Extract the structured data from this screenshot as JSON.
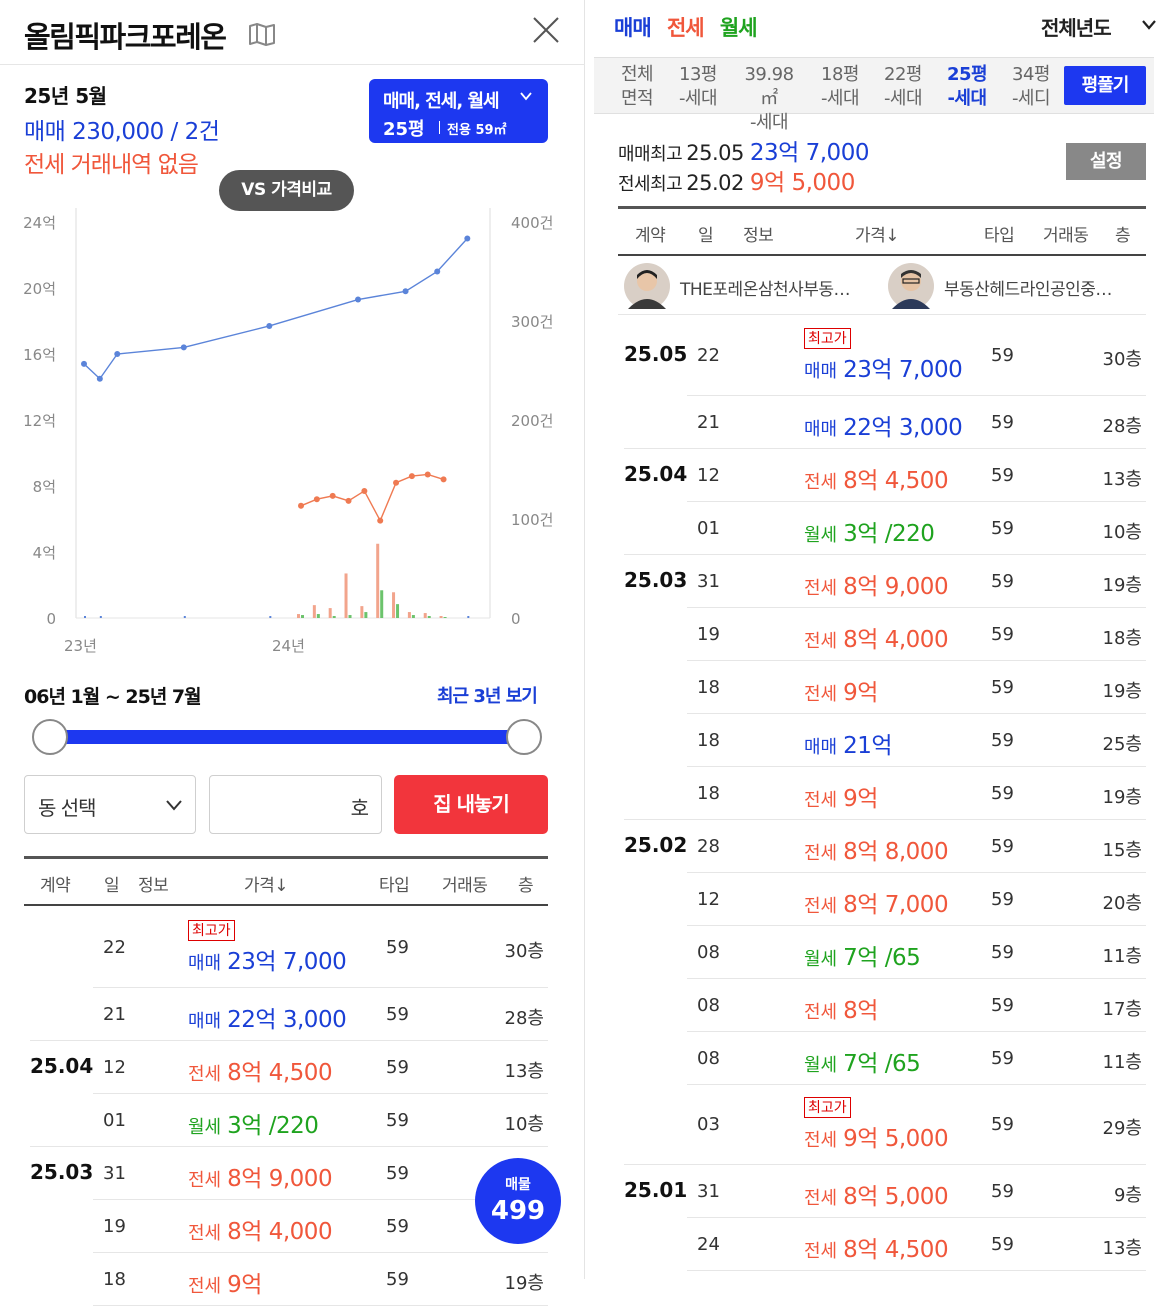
{
  "left": {
    "title": "올림픽파크포레온",
    "summary": {
      "year_month": "25년 5월",
      "sale_summary": "매매 230,000 / 2건",
      "jeonse_summary": "전세 거래내역 없음"
    },
    "type_button": {
      "line1": "매매, 전세, 월세",
      "pyeong": "25평",
      "area": "전용 59㎡"
    },
    "vs_button": "VS 가격비교",
    "range_text": "06년 1월 ~ 25년 7월",
    "recent_link": "최근 3년 보기",
    "dong_select": "동 선택",
    "ho_placeholder": "호",
    "list_button": "집 내놓기",
    "table_headers": [
      "계약",
      "일",
      "정보",
      "가격↓",
      "타입",
      "거래동",
      "층"
    ],
    "rows": [
      {
        "ym": "",
        "day": "22",
        "badge": "최고가",
        "kind": "매매",
        "price": "23억 7,000",
        "type": "59",
        "floor": "30층",
        "color": "blue"
      },
      {
        "ym": "",
        "day": "21",
        "badge": "",
        "kind": "매매",
        "price": "22억 3,000",
        "type": "59",
        "floor": "28층",
        "color": "blue"
      },
      {
        "ym": "25.04",
        "day": "12",
        "badge": "",
        "kind": "전세",
        "price": "8억 4,500",
        "type": "59",
        "floor": "13층",
        "color": "red"
      },
      {
        "ym": "",
        "day": "01",
        "badge": "",
        "kind": "월세",
        "price": "3억 /220",
        "type": "59",
        "floor": "10층",
        "color": "green"
      },
      {
        "ym": "25.03",
        "day": "31",
        "badge": "",
        "kind": "전세",
        "price": "8억 9,000",
        "type": "59",
        "floor": "",
        "color": "red"
      },
      {
        "ym": "",
        "day": "19",
        "badge": "",
        "kind": "전세",
        "price": "8억 4,000",
        "type": "59",
        "floor": "",
        "color": "red"
      },
      {
        "ym": "",
        "day": "18",
        "badge": "",
        "kind": "전세",
        "price": "9억",
        "type": "59",
        "floor": "19층",
        "color": "red"
      }
    ],
    "fab": {
      "label": "매물",
      "count": "499"
    }
  },
  "chart_data": {
    "type": "line",
    "x_ticks": [
      "23년",
      "24년"
    ],
    "y_left_ticks": [
      "0",
      "4억",
      "8억",
      "12억",
      "16억",
      "20억",
      "24억"
    ],
    "y_left_range": [
      0,
      24
    ],
    "y_right_ticks": [
      "0",
      "100건",
      "200건",
      "300건",
      "400건"
    ],
    "y_right_range": [
      0,
      400
    ],
    "x_range": [
      0,
      25
    ],
    "series": [
      {
        "kind": "매매",
        "color": "#5b84d9",
        "x": [
          0.0,
          1.0,
          2.1,
          6.3,
          11.7,
          17.3,
          20.3,
          22.3,
          24.2
        ],
        "y": [
          15.4,
          14.5,
          16.0,
          16.4,
          17.7,
          19.3,
          19.8,
          21.0,
          23.0
        ]
      },
      {
        "kind": "전세",
        "color": "#ef7a52",
        "x": [
          13.7,
          14.7,
          15.7,
          16.7,
          17.7,
          18.7,
          19.7,
          20.7,
          21.7,
          22.7
        ],
        "y": [
          6.8,
          7.2,
          7.4,
          7.1,
          7.7,
          5.9,
          8.2,
          8.6,
          8.7,
          8.4
        ]
      }
    ],
    "volume_bars": {
      "x": [
        13.7,
        14.7,
        15.7,
        16.7,
        17.7,
        18.7,
        19.7,
        20.7,
        21.7,
        22.7
      ],
      "jeonse": [
        4,
        13,
        10,
        45,
        12,
        75,
        26,
        6,
        5,
        2
      ],
      "wolse": [
        3,
        4,
        2,
        3,
        6,
        28,
        14,
        3,
        2,
        1
      ]
    }
  },
  "right": {
    "deal_tabs": [
      {
        "label": "매매",
        "color": "blue"
      },
      {
        "label": "전세",
        "color": "red"
      },
      {
        "label": "월세",
        "color": "green"
      }
    ],
    "year_select": "전체년도",
    "areas": [
      {
        "top": "전체",
        "bottom": "면적",
        "active": false
      },
      {
        "top": "13평",
        "bottom": "-세대",
        "active": false
      },
      {
        "top": "39.98㎡",
        "bottom": "-세대",
        "active": false
      },
      {
        "top": "18평",
        "bottom": "-세대",
        "active": false
      },
      {
        "top": "22평",
        "bottom": "-세대",
        "active": false
      },
      {
        "top": "25평",
        "bottom": "-세대",
        "active": true
      },
      {
        "top": "34평",
        "bottom": "-세디",
        "active": false
      }
    ],
    "pyeong_button": "평풀기",
    "sale_max": {
      "label": "매매최고",
      "date": "25.05",
      "price": "23억 7,000"
    },
    "jeonse_max": {
      "label": "전세최고",
      "date": "25.02",
      "price": "9억 5,000"
    },
    "setting_button": "설정",
    "table_headers": [
      "계약",
      "일",
      "정보",
      "가격↓",
      "타입",
      "거래동",
      "층"
    ],
    "agents": [
      {
        "name": "THE포레온삼천사부동…"
      },
      {
        "name": "부동산헤드라인공인중…"
      }
    ],
    "rows": [
      {
        "ym": "25.05",
        "day": "22",
        "badge": "최고가",
        "kind": "매매",
        "price": "23억 7,000",
        "type": "59",
        "floor": "30층",
        "color": "blue"
      },
      {
        "ym": "",
        "day": "21",
        "badge": "",
        "kind": "매매",
        "price": "22억 3,000",
        "type": "59",
        "floor": "28층",
        "color": "blue"
      },
      {
        "ym": "25.04",
        "day": "12",
        "badge": "",
        "kind": "전세",
        "price": "8억 4,500",
        "type": "59",
        "floor": "13층",
        "color": "red"
      },
      {
        "ym": "",
        "day": "01",
        "badge": "",
        "kind": "월세",
        "price": "3억 /220",
        "type": "59",
        "floor": "10층",
        "color": "green"
      },
      {
        "ym": "25.03",
        "day": "31",
        "badge": "",
        "kind": "전세",
        "price": "8억 9,000",
        "type": "59",
        "floor": "19층",
        "color": "red"
      },
      {
        "ym": "",
        "day": "19",
        "badge": "",
        "kind": "전세",
        "price": "8억 4,000",
        "type": "59",
        "floor": "18층",
        "color": "red"
      },
      {
        "ym": "",
        "day": "18",
        "badge": "",
        "kind": "전세",
        "price": "9억",
        "type": "59",
        "floor": "19층",
        "color": "red"
      },
      {
        "ym": "",
        "day": "18",
        "badge": "",
        "kind": "매매",
        "price": "21억",
        "type": "59",
        "floor": "25층",
        "color": "blue"
      },
      {
        "ym": "",
        "day": "18",
        "badge": "",
        "kind": "전세",
        "price": "9억",
        "type": "59",
        "floor": "19층",
        "color": "red"
      },
      {
        "ym": "25.02",
        "day": "28",
        "badge": "",
        "kind": "전세",
        "price": "8억 8,000",
        "type": "59",
        "floor": "15층",
        "color": "red"
      },
      {
        "ym": "",
        "day": "12",
        "badge": "",
        "kind": "전세",
        "price": "8억 7,000",
        "type": "59",
        "floor": "20층",
        "color": "red"
      },
      {
        "ym": "",
        "day": "08",
        "badge": "",
        "kind": "월세",
        "price": "7억 /65",
        "type": "59",
        "floor": "11층",
        "color": "green"
      },
      {
        "ym": "",
        "day": "08",
        "badge": "",
        "kind": "전세",
        "price": "8억",
        "type": "59",
        "floor": "17층",
        "color": "red"
      },
      {
        "ym": "",
        "day": "08",
        "badge": "",
        "kind": "월세",
        "price": "7억 /65",
        "type": "59",
        "floor": "11층",
        "color": "green"
      },
      {
        "ym": "",
        "day": "03",
        "badge": "최고가",
        "kind": "전세",
        "price": "9억 5,000",
        "type": "59",
        "floor": "29층",
        "color": "red"
      },
      {
        "ym": "25.01",
        "day": "31",
        "badge": "",
        "kind": "전세",
        "price": "8억 5,000",
        "type": "59",
        "floor": "9층",
        "color": "red"
      },
      {
        "ym": "",
        "day": "24",
        "badge": "",
        "kind": "전세",
        "price": "8억 4,500",
        "type": "59",
        "floor": "13층",
        "color": "red"
      }
    ]
  }
}
